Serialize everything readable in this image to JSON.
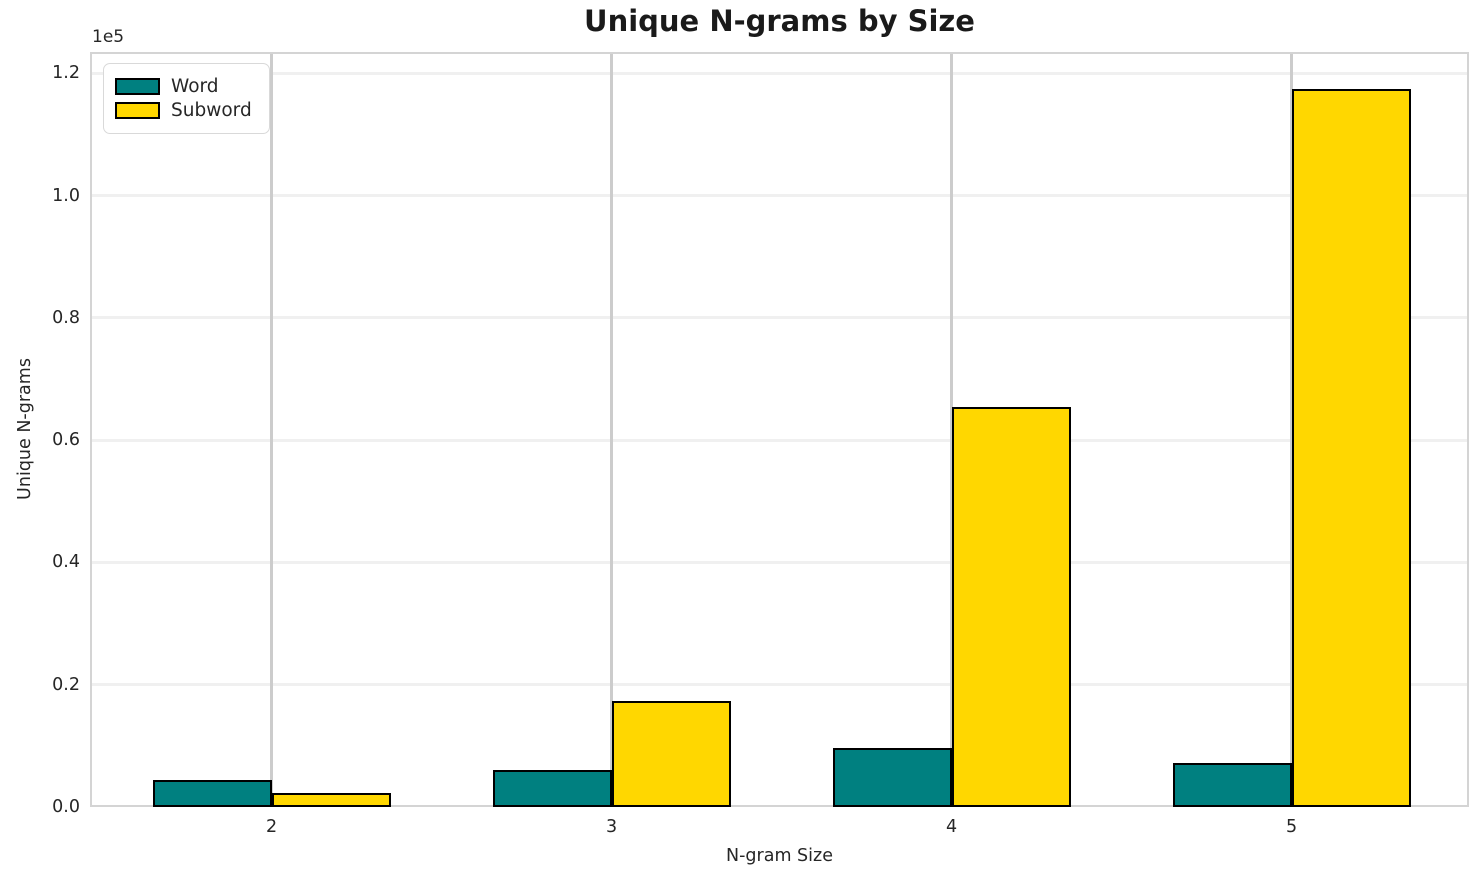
{
  "chart_data": {
    "type": "bar",
    "title": "Unique N-grams by Size",
    "xlabel": "N-gram Size",
    "ylabel": "Unique N-grams",
    "y_offset_label": "1e5",
    "categories": [
      2,
      3,
      4,
      5
    ],
    "xtick_labels": [
      "2",
      "3",
      "4",
      "5"
    ],
    "series": [
      {
        "name": "Word",
        "color": "#008080",
        "values": [
          4500,
          6000,
          9700,
          7200
        ]
      },
      {
        "name": "Subword",
        "color": "#FFD700",
        "values": [
          2300,
          17300,
          65500,
          117400
        ]
      }
    ],
    "bar_edge_color": "#000000",
    "bar_width": 0.35,
    "xlim": [
      1.466,
      5.522
    ],
    "ylim": [
      0,
      123500
    ],
    "yticks": [
      0,
      20000,
      40000,
      60000,
      80000,
      100000,
      120000
    ],
    "ytick_labels": [
      "0.0",
      "0.2",
      "0.4",
      "0.6",
      "0.8",
      "1.0",
      "1.2"
    ],
    "grid": true,
    "legend": {
      "position": "upper-left",
      "entries": [
        "Word",
        "Subword"
      ]
    }
  },
  "colors": {
    "background": "#ffffff",
    "h_grid": "#f0f0f0",
    "v_grid": "#cccccc",
    "spine": "#d4d4d4",
    "text": "#262626",
    "title": "#1a1a1a"
  }
}
